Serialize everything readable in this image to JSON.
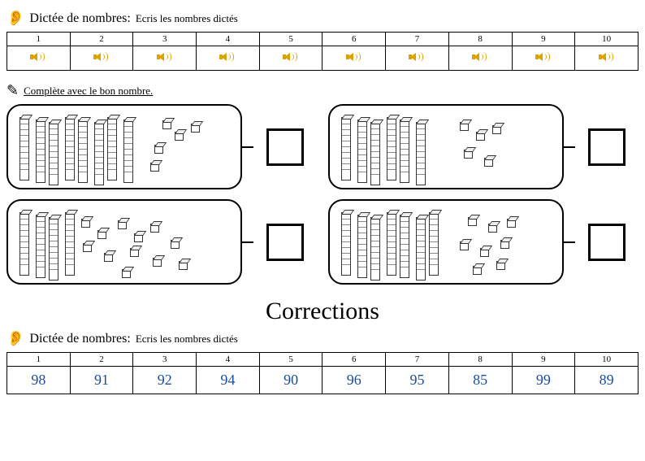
{
  "section1": {
    "icon": "👂",
    "title_main": "Dictée de nombres:",
    "title_sub": "Ecris les nombres dictés",
    "headers": [
      "1",
      "2",
      "3",
      "4",
      "5",
      "6",
      "7",
      "8",
      "9",
      "10"
    ]
  },
  "section2": {
    "icon": "✎",
    "title": "Complète avec le bon nombre.",
    "boxes": [
      {
        "rods": 8,
        "units": [
          [
            190,
            18
          ],
          [
            205,
            32
          ],
          [
            225,
            22
          ],
          [
            180,
            48
          ],
          [
            175,
            70
          ]
        ]
      },
      {
        "rods": 4,
        "units": [
          [
            90,
            22
          ],
          [
            110,
            36
          ],
          [
            135,
            24
          ],
          [
            155,
            40
          ],
          [
            175,
            28
          ],
          [
            92,
            52
          ],
          [
            118,
            64
          ],
          [
            150,
            58
          ],
          [
            178,
            70
          ],
          [
            200,
            48
          ],
          [
            210,
            74
          ],
          [
            140,
            84
          ]
        ]
      },
      {
        "rods": 6,
        "units": [
          [
            160,
            20
          ],
          [
            180,
            32
          ],
          [
            200,
            24
          ],
          [
            165,
            54
          ],
          [
            190,
            64
          ]
        ]
      },
      {
        "rods": 7,
        "units": [
          [
            170,
            20
          ],
          [
            195,
            28
          ],
          [
            218,
            22
          ],
          [
            160,
            50
          ],
          [
            185,
            58
          ],
          [
            210,
            48
          ],
          [
            176,
            80
          ],
          [
            205,
            74
          ]
        ]
      }
    ]
  },
  "corrections_title": "Corrections",
  "section3": {
    "icon": "👂",
    "title_main": "Dictée de nombres:",
    "title_sub": "Ecris les nombres dictés",
    "headers": [
      "1",
      "2",
      "3",
      "4",
      "5",
      "6",
      "7",
      "8",
      "9",
      "10"
    ],
    "answers": [
      "98",
      "91",
      "92",
      "94",
      "90",
      "96",
      "95",
      "85",
      "99",
      "89"
    ]
  },
  "colors": {
    "speaker": "#d9a400",
    "answer": "#1a4da0"
  }
}
